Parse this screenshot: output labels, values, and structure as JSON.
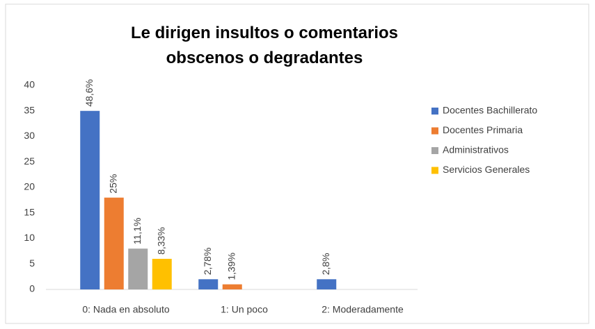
{
  "chart_data": {
    "type": "bar",
    "title": "Le dirigen insultos o comentarios obscenos o degradantes",
    "categories": [
      "0: Nada en absoluto",
      "1: Un poco",
      "2: Moderadamente"
    ],
    "series": [
      {
        "name": "Docentes Bachillerato",
        "color": "#4472c4",
        "values": [
          35,
          2,
          2
        ],
        "value_labels": [
          "48,6%",
          "2,78%",
          "2,8%"
        ]
      },
      {
        "name": "Docentes Primaria",
        "color": "#ed7d31",
        "values": [
          18,
          1,
          0
        ],
        "value_labels": [
          "25%",
          "1,39%",
          null
        ]
      },
      {
        "name": "Administrativos",
        "color": "#a5a5a5",
        "values": [
          8,
          0,
          0
        ],
        "value_labels": [
          "11,1%",
          null,
          null
        ]
      },
      {
        "name": "Servicios Generales",
        "color": "#ffc000",
        "values": [
          6,
          0,
          0
        ],
        "value_labels": [
          "8,33%",
          null,
          null
        ]
      }
    ],
    "ylim": [
      0,
      40
    ],
    "yticks": [
      0,
      5,
      10,
      15,
      20,
      25,
      30,
      35,
      40
    ],
    "grid": false,
    "legend": "right"
  }
}
